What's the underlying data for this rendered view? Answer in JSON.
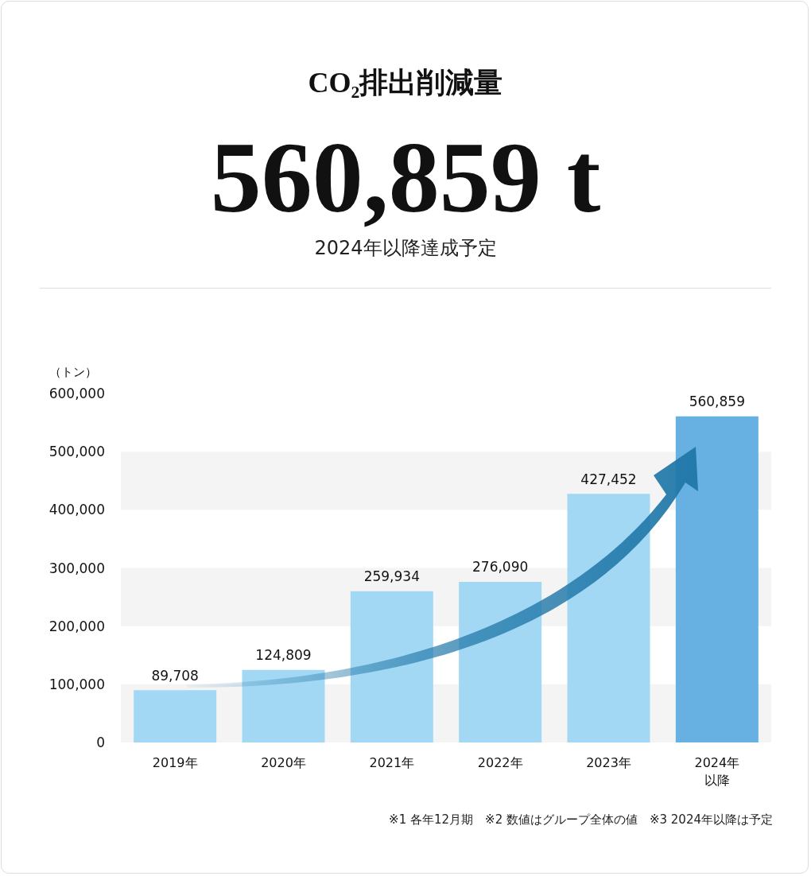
{
  "chart_data": {
    "type": "bar",
    "title": "CO₂排出削減量",
    "subtitle": "560,859 t",
    "ylabel": "（トン）",
    "annotations": [
      "2024年以降達成予定",
      "※1 各年12月期　※2 数値はグループ全体の値　※3 2024年以降は予定"
    ],
    "categories": [
      "2019年",
      "2020年",
      "2021年",
      "2022年",
      "2023年",
      "2024年以降"
    ],
    "values": [
      89708,
      124809,
      259934,
      276090,
      427452,
      560859
    ],
    "value_labels": [
      "89,708",
      "124,809",
      "259,934",
      "276,090",
      "427,452",
      "560,859"
    ],
    "colors": [
      "#a3d8f4",
      "#a3d8f4",
      "#a3d8f4",
      "#a3d8f4",
      "#a3d8f4",
      "#66b0e2"
    ],
    "ylim": [
      0,
      600000
    ],
    "yticks": [
      0,
      {
        "value": 100000,
        "label": "100,000"
      },
      {
        "value": 200000,
        "label": "200,000"
      },
      {
        "value": 300000,
        "label": "300,000"
      },
      {
        "value": 400000,
        "label": "400,000"
      },
      {
        "value": 500000,
        "label": "500,000"
      },
      {
        "value": 600000,
        "label": "600,000"
      }
    ],
    "bands": [
      {
        "axis": "y",
        "from": 0,
        "to": 100000,
        "color": "#f4f4f4"
      },
      {
        "axis": "y",
        "from": 200000,
        "to": 300000,
        "color": "#f4f4f4"
      },
      {
        "axis": "y",
        "from": 400000,
        "to": 500000,
        "color": "#f4f4f4"
      }
    ]
  }
}
